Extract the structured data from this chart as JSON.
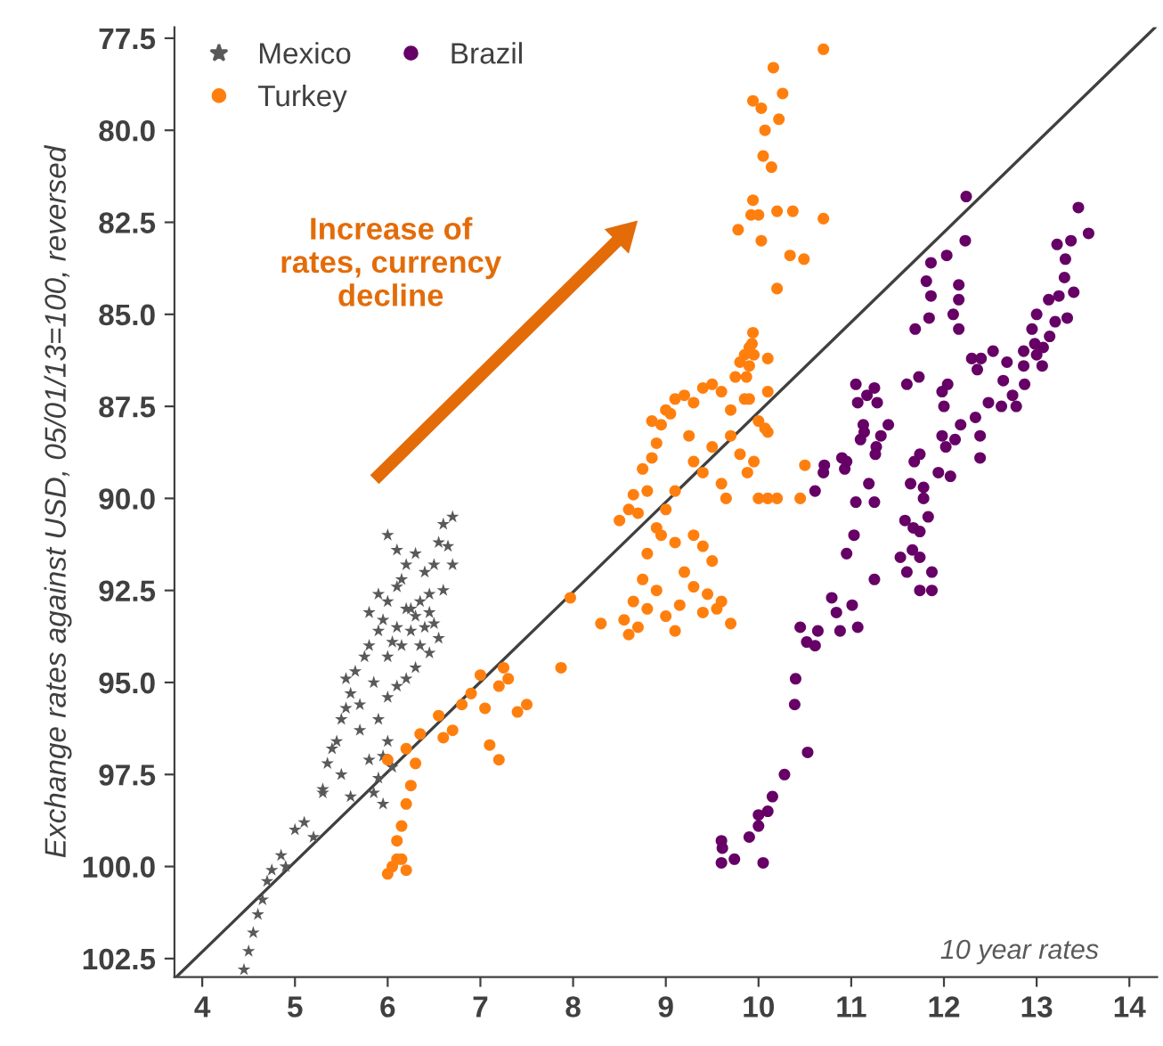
{
  "chart_data": {
    "type": "scatter",
    "xlabel": "10 year rates",
    "ylabel": "Exchange rates against USD, 05/01/13=100, reversed",
    "xlim": [
      3.7,
      14.3
    ],
    "ylim": [
      103.0,
      77.2
    ],
    "xticks": [
      4,
      5,
      6,
      7,
      8,
      9,
      10,
      11,
      12,
      13,
      14
    ],
    "yticks": [
      {
        "value": 77.5,
        "label": "77.5"
      },
      {
        "value": 80,
        "label": "80.0"
      },
      {
        "value": 82.5,
        "label": "82.5"
      },
      {
        "value": 85,
        "label": "85.0"
      },
      {
        "value": 87.5,
        "label": "87.5"
      },
      {
        "value": 90,
        "label": "90.0"
      },
      {
        "value": 92.5,
        "label": "92.5"
      },
      {
        "value": 95,
        "label": "95.0"
      },
      {
        "value": 97.5,
        "label": "97.5"
      },
      {
        "value": 100,
        "label": "100.0"
      },
      {
        "value": 102.5,
        "label": "102.5"
      }
    ],
    "grid": false,
    "legend": "top left",
    "annotations": [
      "Increase of\nrates, currency\ndecline"
    ],
    "series": [
      {
        "name": "Mexico",
        "color": "#595959",
        "marker": "star",
        "x": [
          4.45,
          4.5,
          4.55,
          4.6,
          4.65,
          4.7,
          4.75,
          4.85,
          4.9,
          5.0,
          5.1,
          5.3,
          5.35,
          5.4,
          5.5,
          5.45,
          5.55,
          5.6,
          5.55,
          5.65,
          5.7,
          5.75,
          5.8,
          5.85,
          5.9,
          5.95,
          6.0,
          6.05,
          6.1,
          6.15,
          6.2,
          6.25,
          6.3,
          6.35,
          6.4,
          6.45,
          6.5,
          6.55,
          6.6,
          6.65,
          6.7,
          6.3,
          6.2,
          6.0,
          6.1,
          6.4,
          6.5,
          6.55,
          6.45,
          6.3,
          6.2,
          6.1,
          6.0,
          5.9,
          6.0,
          5.95,
          5.9,
          5.85,
          5.95,
          6.05,
          5.7,
          5.8,
          5.5,
          5.6,
          5.3,
          5.2,
          6.15,
          6.25,
          6.35,
          6.45,
          6.0,
          5.8,
          5.9,
          6.1,
          6.6,
          6.7
        ],
        "values": [
          102.8,
          102.3,
          101.8,
          101.3,
          100.9,
          100.4,
          100.1,
          99.7,
          100.0,
          99.0,
          98.8,
          98.0,
          97.2,
          96.8,
          96.0,
          96.6,
          95.7,
          95.3,
          94.9,
          94.7,
          95.6,
          94.3,
          94.0,
          95.0,
          93.6,
          93.3,
          92.8,
          93.9,
          92.4,
          92.2,
          93.0,
          93.6,
          93.2,
          94.0,
          93.5,
          92.6,
          91.8,
          91.2,
          90.7,
          91.3,
          90.5,
          91.5,
          91.8,
          91.0,
          91.4,
          92.0,
          93.4,
          93.8,
          94.2,
          94.6,
          94.9,
          95.1,
          95.4,
          96.0,
          96.6,
          97.0,
          97.6,
          98.0,
          98.3,
          97.3,
          96.3,
          97.1,
          97.5,
          98.1,
          97.9,
          99.2,
          94.0,
          93.0,
          92.8,
          93.1,
          94.3,
          93.1,
          92.6,
          93.5,
          92.5,
          91.8
        ]
      },
      {
        "name": "Turkey",
        "color": "#ff7f0e",
        "marker": "circle",
        "x": [
          6.0,
          6.05,
          6.1,
          6.15,
          6.2,
          6.1,
          6.15,
          6.2,
          6.25,
          6.3,
          6.2,
          6.35,
          6.0,
          6.6,
          6.7,
          6.55,
          6.8,
          6.9,
          7.0,
          7.05,
          7.2,
          7.25,
          7.3,
          7.1,
          7.2,
          7.4,
          7.5,
          7.87,
          7.97,
          8.5,
          8.6,
          8.65,
          8.7,
          8.8,
          8.75,
          8.85,
          8.9,
          8.85,
          8.95,
          9.0,
          9.05,
          9.1,
          9.2,
          9.3,
          9.4,
          9.5,
          9.6,
          9.7,
          9.75,
          9.8,
          9.85,
          9.9,
          9.95,
          9.9,
          9.7,
          9.8,
          10.0,
          10.1,
          10.2,
          10.45,
          10.5,
          10.0,
          9.5,
          9.4,
          9.3,
          9.1,
          9.0,
          8.9,
          8.8,
          8.75,
          8.65,
          8.55,
          8.6,
          8.7,
          8.8,
          8.9,
          9.0,
          9.1,
          9.15,
          9.2,
          9.3,
          9.4,
          9.45,
          9.5,
          9.55,
          9.6,
          9.7,
          9.3,
          9.4,
          9.1,
          8.3,
          8.95,
          9.65,
          9.25,
          9.6,
          10.7,
          10.16,
          9.94,
          10.03,
          10.26,
          10.22,
          10.07,
          10.05,
          10.14,
          9.94,
          9.92,
          10.0,
          10.2,
          10.37,
          10.7,
          9.78,
          10.03,
          10.34,
          10.49,
          10.2,
          9.94,
          9.93,
          10.1,
          9.9,
          9.87,
          9.85,
          10.1,
          10.07,
          10.1,
          9.95,
          9.88
        ],
        "values": [
          100.2,
          100.0,
          99.8,
          99.8,
          100.1,
          99.3,
          98.9,
          98.3,
          97.8,
          97.2,
          96.8,
          96.4,
          97.1,
          96.5,
          96.3,
          95.9,
          95.6,
          95.3,
          94.8,
          95.7,
          95.1,
          94.6,
          94.9,
          96.7,
          97.1,
          95.8,
          95.6,
          94.6,
          92.7,
          90.6,
          90.3,
          89.9,
          90.4,
          89.8,
          89.2,
          88.9,
          88.5,
          87.9,
          88.0,
          87.6,
          87.7,
          87.3,
          87.2,
          87.4,
          87.0,
          86.9,
          87.1,
          87.6,
          86.7,
          86.3,
          86.1,
          85.9,
          86.1,
          87.3,
          88.3,
          88.8,
          87.9,
          90.0,
          90.0,
          90.0,
          89.1,
          90.0,
          88.6,
          89.3,
          89.0,
          89.8,
          90.3,
          90.8,
          91.5,
          92.2,
          92.8,
          93.3,
          93.7,
          93.5,
          93.0,
          92.5,
          93.2,
          93.6,
          92.9,
          92.0,
          92.4,
          93.1,
          92.6,
          91.7,
          93.0,
          92.8,
          93.4,
          91.0,
          91.3,
          91.2,
          93.4,
          91.0,
          90.0,
          88.3,
          89.6,
          77.8,
          78.3,
          79.2,
          79.4,
          79.0,
          79.7,
          80.0,
          80.7,
          81.0,
          81.9,
          82.3,
          82.3,
          82.2,
          82.2,
          82.4,
          82.7,
          83.0,
          83.4,
          83.5,
          84.3,
          85.5,
          85.8,
          86.2,
          86.4,
          86.7,
          87.3,
          87.1,
          88.1,
          88.2,
          89.0,
          89.3
        ]
      },
      {
        "name": "Brazil",
        "color": "#660066",
        "marker": "circle",
        "x": [
          12.24,
          13.45,
          13.56,
          13.37,
          13.22,
          12.23,
          11.86,
          12.03,
          11.81,
          11.86,
          12.16,
          12.16,
          12.1,
          11.84,
          11.69,
          12.16,
          13.31,
          13.3,
          13.4,
          13.24,
          13.13,
          13.0,
          13.33,
          13.2,
          12.95,
          13.14,
          12.98,
          13.07,
          12.86,
          13.0,
          12.68,
          12.53,
          12.4,
          12.3,
          12.36,
          12.86,
          13.06,
          12.64,
          12.87,
          12.74,
          12.78,
          12.62,
          12.48,
          12.34,
          12.39,
          12.39,
          12.18,
          12.12,
          12.02,
          11.98,
          12.07,
          11.94,
          11.68,
          11.74,
          11.98,
          12.04,
          11.73,
          11.6,
          12.0,
          11.05,
          11.25,
          11.17,
          11.07,
          11.28,
          11.13,
          11.4,
          11.14,
          11.32,
          11.1,
          11.27,
          11.26,
          10.9,
          10.95,
          10.71,
          10.93,
          10.7,
          10.61,
          11.19,
          11.05,
          11.25,
          11.64,
          11.78,
          11.78,
          11.58,
          11.67,
          11.83,
          11.74,
          11.03,
          10.95,
          11.53,
          11.66,
          11.74,
          11.6,
          11.87,
          11.74,
          11.87,
          11.25,
          10.79,
          11.01,
          10.84,
          10.45,
          10.64,
          10.52,
          10.61,
          10.88,
          11.07,
          10.4,
          10.39,
          10.53,
          10.28,
          10.15,
          10.1,
          10.0,
          10.0,
          9.9,
          9.6,
          9.61,
          9.6,
          9.74,
          10.05
        ],
        "values": [
          81.8,
          82.1,
          82.8,
          83.0,
          83.1,
          83.0,
          83.6,
          83.4,
          84.1,
          84.5,
          84.2,
          84.6,
          85.0,
          85.1,
          85.4,
          85.4,
          83.5,
          84.0,
          84.4,
          84.5,
          84.6,
          85.0,
          85.1,
          85.2,
          85.4,
          85.6,
          85.8,
          85.9,
          86.0,
          86.1,
          86.3,
          86.0,
          86.2,
          86.2,
          86.5,
          86.4,
          86.4,
          86.8,
          86.9,
          87.2,
          87.5,
          87.5,
          87.4,
          87.8,
          88.3,
          88.9,
          88.0,
          88.4,
          88.6,
          88.3,
          89.4,
          89.3,
          89.0,
          88.8,
          87.1,
          86.9,
          86.7,
          86.9,
          87.5,
          86.9,
          87.0,
          87.2,
          87.4,
          87.4,
          88.0,
          88.0,
          88.2,
          88.3,
          88.4,
          88.6,
          88.8,
          88.9,
          89.0,
          89.1,
          89.2,
          89.3,
          89.8,
          89.6,
          90.1,
          90.1,
          89.6,
          89.7,
          90.0,
          90.6,
          90.8,
          90.5,
          90.9,
          91.0,
          91.5,
          91.6,
          91.4,
          91.6,
          92.0,
          92.0,
          92.5,
          92.5,
          92.2,
          92.7,
          92.9,
          93.1,
          93.5,
          93.6,
          93.9,
          94.0,
          93.6,
          93.5,
          94.9,
          95.6,
          96.9,
          97.5,
          98.1,
          98.5,
          98.6,
          98.9,
          99.2,
          99.3,
          99.5,
          99.9,
          99.8,
          99.9
        ]
      },
      {
        "type": "line",
        "color": "#404040",
        "line_style": "solid",
        "x": [
          3.72,
          14.28
        ],
        "values": [
          103.0,
          77.2
        ]
      }
    ]
  }
}
